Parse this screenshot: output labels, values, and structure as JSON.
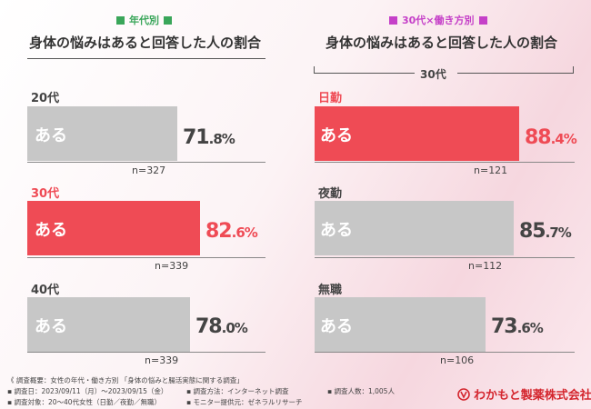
{
  "left_panel": {
    "tag": "年代別",
    "title": "身体の悩みはあると回答した人の割合"
  },
  "right_panel": {
    "tag": "30代×働き方別",
    "title": "身体の悩みはあると回答した人の割合",
    "group_label": "30代"
  },
  "chart_data": [
    {
      "type": "bar",
      "title": "身体の悩みはあると回答した人の割合",
      "group": "年代別",
      "bar_text": "ある",
      "xlim": [
        0,
        100
      ],
      "unit": "%",
      "categories": [
        "20代",
        "30代",
        "40代"
      ],
      "values": [
        71.8,
        82.6,
        78.0
      ],
      "value_int": [
        "71",
        "82",
        "78"
      ],
      "value_dec": [
        ".8%",
        ".6%",
        ".0%"
      ],
      "n": [
        "n=327",
        "n=339",
        "n=339"
      ],
      "highlight_index": 1
    },
    {
      "type": "bar",
      "title": "身体の悩みはあると回答した人の割合",
      "group": "30代×働き方別",
      "subgroup": "30代",
      "bar_text": "ある",
      "xlim": [
        0,
        100
      ],
      "unit": "%",
      "categories": [
        "日勤",
        "夜勤",
        "無職"
      ],
      "values": [
        88.4,
        85.7,
        73.6
      ],
      "value_int": [
        "88",
        "85",
        "73"
      ],
      "value_dec": [
        ".4%",
        ".7%",
        ".6%"
      ],
      "n": [
        "n=121",
        "n=112",
        "n=106"
      ],
      "highlight_index": 0
    }
  ],
  "colors": {
    "highlight": "#ef4b55",
    "normal": "#c7c7c7",
    "left_tag": "#3aa65a",
    "right_tag": "#c540c8",
    "text_dark": "#444444"
  },
  "footer": {
    "line1": "《 調査概要：女性の年代・働き方別 「身体の悩みと腸活実態に関する調査」",
    "line2a": "▪ 調査日：2023/09/11（月）～2023/09/15（金）",
    "line2b": "▪ 調査方法：インターネット調査",
    "line2c": "▪ 調査人数：1,005人",
    "line3a": "▪ 調査対象：20～40代女性（日勤／夜勤／無職）",
    "line3b": "▪ モニター提供元：ゼネラルリサーチ",
    "logo_text": "わかもと製薬株式会社"
  }
}
